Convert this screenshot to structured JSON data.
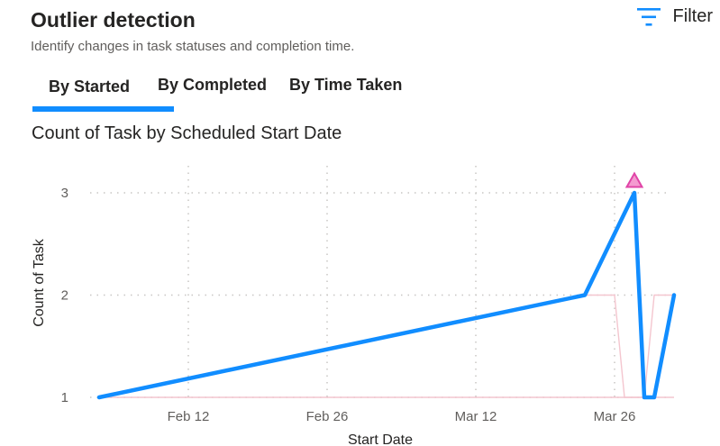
{
  "header": {
    "title": "Outlier detection",
    "subtitle": "Identify changes in task statuses and completion time.",
    "filter_label": "Filter",
    "filter_icon": "filter-icon"
  },
  "tabs": [
    {
      "label": "By Started",
      "active": true
    },
    {
      "label": "By Completed",
      "active": false
    },
    {
      "label": "By Time Taken",
      "active": false
    }
  ],
  "colors": {
    "accent": "#118dff",
    "line": "#118dff",
    "outlier": "#e044a7",
    "band": "#f4c6cf"
  },
  "chart_data": {
    "type": "line",
    "title": "Count of Task by Scheduled Start Date",
    "xlabel": "Start Date",
    "ylabel": "Count of Task",
    "x_ticks": [
      "Feb 12",
      "Feb 26",
      "Mar 12",
      "Mar 26"
    ],
    "y_ticks": [
      "1",
      "2",
      "3"
    ],
    "ylim": [
      1,
      3
    ],
    "grid": true,
    "series": [
      {
        "x": [
          "Feb 3",
          "Mar 23",
          "Mar 28",
          "Mar 29",
          "Mar 30",
          "Apr 1"
        ],
        "values": [
          1,
          2,
          3,
          1,
          1,
          2
        ]
      }
    ],
    "expected_range": {
      "x": [
        "Feb 3",
        "Mar 23",
        "Mar 26",
        "Mar 27",
        "Mar 29",
        "Mar 30",
        "Apr 1"
      ],
      "lower": [
        1,
        1,
        1,
        1,
        1,
        1,
        1
      ],
      "upper": [
        1,
        2,
        2,
        1,
        1,
        2,
        2
      ]
    },
    "outliers": [
      {
        "x": "Mar 28",
        "value": 3
      }
    ]
  }
}
